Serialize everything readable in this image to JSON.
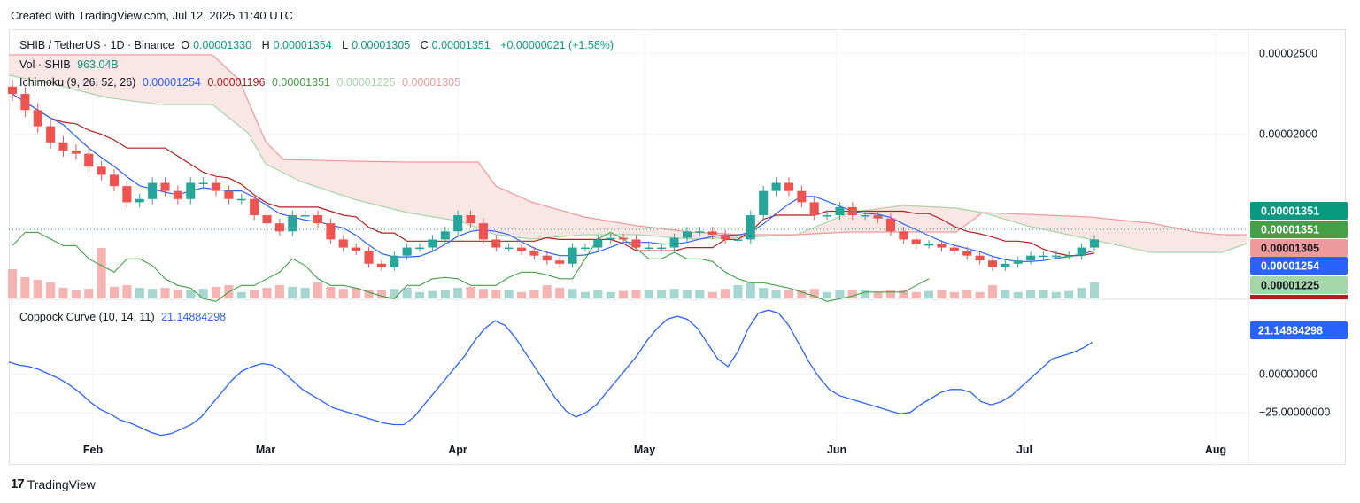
{
  "header": {
    "created_text": "Created with TradingView.com, Jul 12, 2025 11:40 UTC"
  },
  "legend": {
    "symbol": "SHIB / TetherUS · 1D · Binance",
    "o_label": "O",
    "o_value": "0.00001330",
    "h_label": "H",
    "h_value": "0.00001354",
    "l_label": "L",
    "l_value": "0.00001305",
    "c_label": "C",
    "c_value": "0.00001351",
    "change": "+0.00000021 (+1.58%)",
    "vol_label": "Vol · SHIB",
    "vol_value": "963.04B",
    "ichimoku_label": "Ichimoku (9, 26, 52, 26)",
    "ichimoku_values": [
      "0.00001254",
      "0.00001196",
      "0.00001351",
      "0.00001225",
      "0.00001305"
    ],
    "coppock_label": "Coppock Curve (10, 14, 11)",
    "coppock_value": "21.14884298"
  },
  "footer": {
    "brand": "TradingView",
    "brand_mark": "17"
  },
  "colors": {
    "up": "#26a69a",
    "down": "#ef5350",
    "conversion": "#2962ff",
    "base": "#b71c1c",
    "lagging": "#43a047",
    "span_a": "#a5d6a7",
    "span_b": "#ef9a9a",
    "coppock": "#2962ff"
  },
  "chart_data": [
    {
      "type": "candlestick",
      "title": "SHIB / TetherUS · 1D · Binance",
      "y_axis_ticks": [
        "0.00002500",
        "0.00002000"
      ],
      "y_tick_values": [
        2.5e-05,
        2e-05
      ],
      "x_tick_labels": [
        "Feb",
        "Mar",
        "Apr",
        "May",
        "Jun",
        "Jul",
        "Aug"
      ],
      "price_badges": [
        {
          "value": "0.00001351",
          "color": "#089981"
        },
        {
          "value": "0.00001351",
          "color": "#43a047"
        },
        {
          "value": "0.00001305",
          "color": "#ef9a9a"
        },
        {
          "value": "0.00001254",
          "color": "#2962ff"
        },
        {
          "value": "0.00001225",
          "color": "#a5d6a7"
        }
      ],
      "close_path": [
        2.25e-05,
        2.15e-05,
        2.05e-05,
        1.95e-05,
        1.9e-05,
        1.88e-05,
        1.8e-05,
        1.75e-05,
        1.68e-05,
        1.58e-05,
        1.6e-05,
        1.7e-05,
        1.65e-05,
        1.6e-05,
        1.7e-05,
        1.7e-05,
        1.65e-05,
        1.6e-05,
        1.6e-05,
        1.5e-05,
        1.45e-05,
        1.4e-05,
        1.5e-05,
        1.5e-05,
        1.45e-05,
        1.35e-05,
        1.3e-05,
        1.28e-05,
        1.2e-05,
        1.18e-05,
        1.25e-05,
        1.3e-05,
        1.3e-05,
        1.35e-05,
        1.4e-05,
        1.5e-05,
        1.45e-05,
        1.35e-05,
        1.3e-05,
        1.3e-05,
        1.28e-05,
        1.25e-05,
        1.22e-05,
        1.2e-05,
        1.3e-05,
        1.3e-05,
        1.35e-05,
        1.36e-05,
        1.35e-05,
        1.3e-05,
        1.3e-05,
        1.3e-05,
        1.36e-05,
        1.4e-05,
        1.4e-05,
        1.38e-05,
        1.35e-05,
        1.35e-05,
        1.5e-05,
        1.65e-05,
        1.7e-05,
        1.65e-05,
        1.58e-05,
        1.5e-05,
        1.5e-05,
        1.55e-05,
        1.5e-05,
        1.5e-05,
        1.48e-05,
        1.4e-05,
        1.35e-05,
        1.32e-05,
        1.32e-05,
        1.3e-05,
        1.28e-05,
        1.25e-05,
        1.22e-05,
        1.18e-05,
        1.2e-05,
        1.22e-05,
        1.25e-05,
        1.25e-05,
        1.25e-05,
        1.25e-05,
        1.3e-05,
        1.35e-05
      ],
      "volume_path": [
        55,
        40,
        35,
        30,
        20,
        15,
        18,
        95,
        22,
        25,
        20,
        18,
        20,
        15,
        15,
        18,
        22,
        25,
        12,
        15,
        20,
        25,
        22,
        20,
        30,
        22,
        18,
        20,
        15,
        15,
        18,
        20,
        12,
        14,
        15,
        20,
        22,
        18,
        15,
        15,
        12,
        15,
        25,
        20,
        18,
        12,
        15,
        12,
        14,
        15,
        15,
        15,
        18,
        15,
        15,
        12,
        18,
        25,
        30,
        20,
        15,
        15,
        15,
        18,
        12,
        15,
        15,
        15,
        12,
        15,
        15,
        12,
        14,
        15,
        12,
        15,
        12,
        25,
        15,
        12,
        15,
        15,
        12,
        14,
        20,
        30
      ]
    },
    {
      "type": "line",
      "title": "Coppock Curve (10, 14, 11)",
      "y_axis_ticks": [
        "0.00000000",
        "−25.00000000"
      ],
      "y_tick_values": [
        0,
        -25
      ],
      "x_tick_labels": [
        "Feb",
        "Mar",
        "Apr",
        "May",
        "Jun",
        "Jul",
        "Aug"
      ],
      "value_badge": "21.14884298",
      "values": [
        8,
        6,
        5,
        3,
        0,
        -3,
        -7,
        -12,
        -18,
        -23,
        -26,
        -30,
        -32,
        -35,
        -38,
        -40,
        -39,
        -36,
        -33,
        -28,
        -20,
        -12,
        -4,
        2,
        5,
        7,
        6,
        2,
        -4,
        -10,
        -14,
        -18,
        -22,
        -24,
        -26,
        -28,
        -30,
        -32,
        -33,
        -33,
        -28,
        -20,
        -12,
        -4,
        4,
        12,
        22,
        30,
        35,
        32,
        24,
        14,
        4,
        -6,
        -16,
        -24,
        -28,
        -25,
        -20,
        -12,
        -4,
        4,
        12,
        22,
        30,
        36,
        38,
        36,
        30,
        20,
        10,
        5,
        15,
        30,
        40,
        42,
        40,
        32,
        20,
        8,
        -2,
        -10,
        -14,
        -16,
        -18,
        -20,
        -22,
        -24,
        -26,
        -25,
        -20,
        -16,
        -12,
        -10,
        -10,
        -12,
        -18,
        -20,
        -18,
        -14,
        -8,
        -2,
        4,
        10,
        12,
        14,
        17,
        21
      ]
    }
  ]
}
